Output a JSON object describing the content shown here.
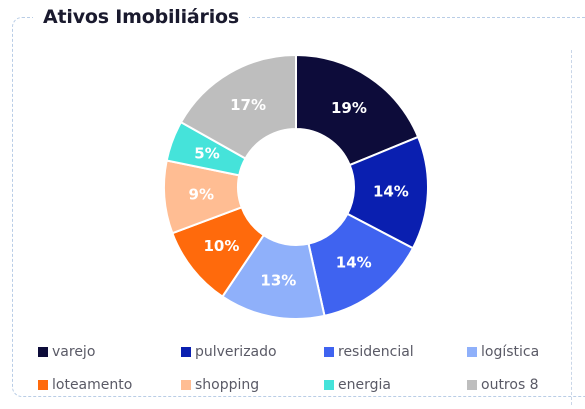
{
  "title": "Ativos Imobiliários",
  "chart_data": {
    "type": "pie",
    "variant": "donut",
    "title": "Ativos Imobiliários",
    "legend_position": "bottom",
    "slices": [
      {
        "label": "varejo",
        "value": 19,
        "display": "19%",
        "color": "#0d0c3a"
      },
      {
        "label": "pulverizado",
        "value": 14,
        "display": "14%",
        "color": "#0a1fb0"
      },
      {
        "label": "residencial",
        "value": 14,
        "display": "14%",
        "color": "#3f63f0"
      },
      {
        "label": "logística",
        "value": 13,
        "display": "13%",
        "color": "#8fb0fa"
      },
      {
        "label": "loteamento",
        "value": 10,
        "display": "10%",
        "color": "#ff6a0c"
      },
      {
        "label": "shopping",
        "value": 9,
        "display": "9%",
        "color": "#ffbd93"
      },
      {
        "label": "energia",
        "value": 5,
        "display": "5%",
        "color": "#45e3da"
      },
      {
        "label": "outros 8",
        "value": 17,
        "display": "17%",
        "color": "#bebebe"
      }
    ]
  }
}
